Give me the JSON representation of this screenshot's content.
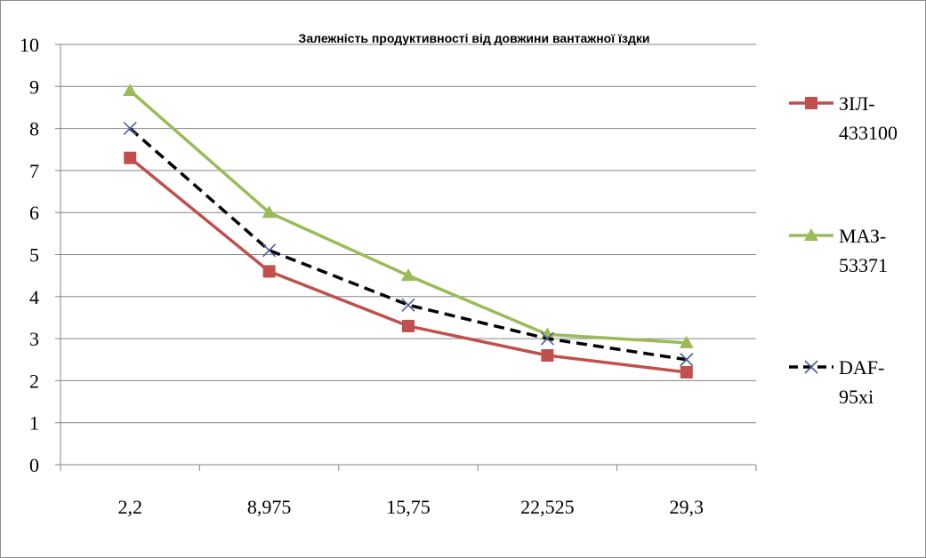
{
  "chart_data": {
    "type": "line",
    "title": "Залежність продуктивності від довжини вантажної їздки",
    "xlabel": "",
    "ylabel": "",
    "categories": [
      "2,2",
      "8,975",
      "15,75",
      "22,525",
      "29,3"
    ],
    "ylim": [
      0,
      10
    ],
    "yticks": [
      "0",
      "1",
      "2",
      "3",
      "4",
      "5",
      "6",
      "7",
      "8",
      "9",
      "10"
    ],
    "grid": "horizontal",
    "legend": "right",
    "series": [
      {
        "name_lines": [
          "ЗІЛ-",
          "433100"
        ],
        "values": [
          7.3,
          4.6,
          3.3,
          2.6,
          2.2
        ],
        "color": "#c0504d",
        "marker": "square",
        "dash": "solid"
      },
      {
        "name_lines": [
          "МАЗ-",
          "53371"
        ],
        "values": [
          8.9,
          6.0,
          4.5,
          3.1,
          2.9
        ],
        "color": "#9bbb59",
        "marker": "triangle",
        "dash": "solid"
      },
      {
        "name_lines": [
          "DAF-",
          "95xi"
        ],
        "values": [
          8.0,
          5.1,
          3.8,
          3.0,
          2.5
        ],
        "color": "#000000",
        "marker_color": "#4f5b9a",
        "marker": "cross",
        "dash": "dashed"
      }
    ]
  }
}
